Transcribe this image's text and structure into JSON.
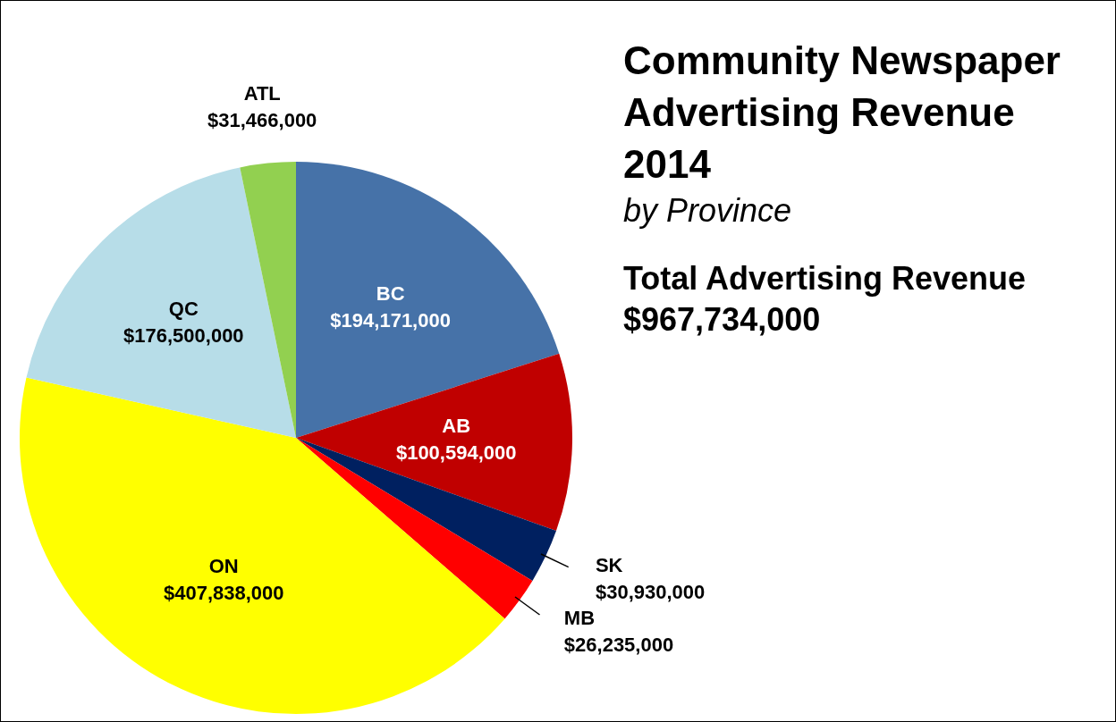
{
  "chart_data": {
    "type": "pie",
    "title": "Community Newspaper Advertising Revenue 2014",
    "subtitle": "by Province",
    "categories": [
      "BC",
      "AB",
      "SK",
      "MB",
      "ON",
      "QC",
      "ATL"
    ],
    "values": [
      194171000,
      100594000,
      30930000,
      26235000,
      407838000,
      176500000,
      31466000
    ],
    "value_labels": [
      "$194,171,000",
      "$100,594,000",
      "$30,930,000",
      "$26,235,000",
      "$407,838,000",
      "$176,500,000",
      "$31,466,000"
    ],
    "colors": [
      "#4672a8",
      "#c00000",
      "#002060",
      "#ff0000",
      "#ffff00",
      "#b7dde8",
      "#92d050"
    ],
    "annotations": [
      "Total Advertising Revenue",
      "$967,734,000"
    ],
    "legend": false
  }
}
